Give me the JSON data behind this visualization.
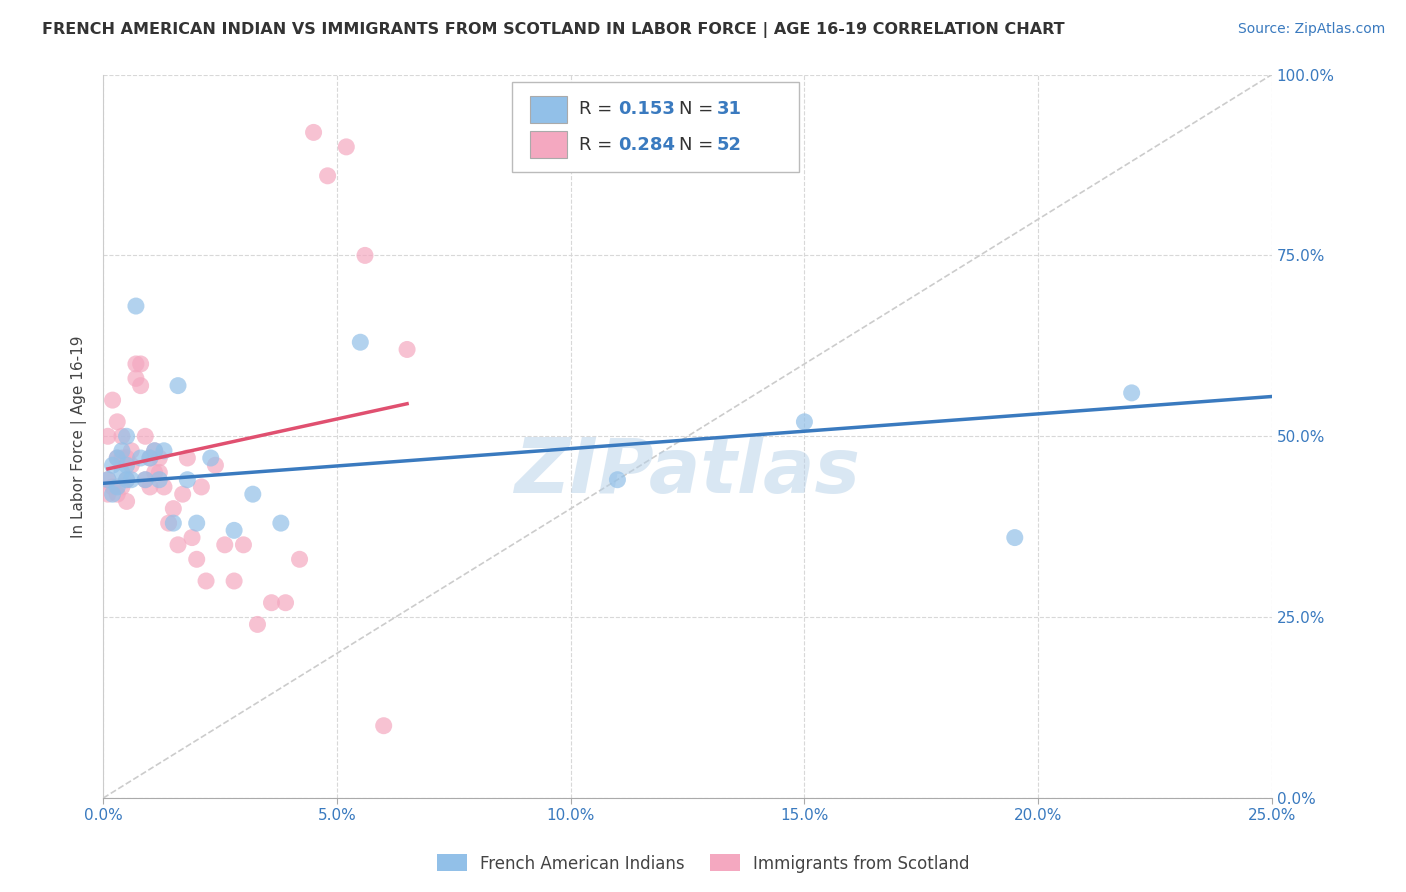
{
  "title": "FRENCH AMERICAN INDIAN VS IMMIGRANTS FROM SCOTLAND IN LABOR FORCE | AGE 16-19 CORRELATION CHART",
  "source": "Source: ZipAtlas.com",
  "ylabel": "In Labor Force | Age 16-19",
  "xlim": [
    0,
    0.25
  ],
  "ylim": [
    0,
    1.0
  ],
  "xticks": [
    0.0,
    0.05,
    0.1,
    0.15,
    0.2,
    0.25
  ],
  "yticks": [
    0.0,
    0.25,
    0.5,
    0.75,
    1.0
  ],
  "xtick_labels": [
    "0.0%",
    "5.0%",
    "10.0%",
    "15.0%",
    "20.0%",
    "25.0%"
  ],
  "ytick_labels": [
    "0.0%",
    "25.0%",
    "50.0%",
    "75.0%",
    "100.0%"
  ],
  "blue_R": 0.153,
  "blue_N": 31,
  "pink_R": 0.284,
  "pink_N": 52,
  "blue_color": "#92c0e8",
  "pink_color": "#f4a8c0",
  "blue_line_color": "#3a7abf",
  "pink_line_color": "#e05070",
  "ref_line_color": "#cccccc",
  "watermark": "ZIPatlas",
  "grid_color": "#d8d8d8",
  "blue_scatter_x": [
    0.001,
    0.002,
    0.002,
    0.003,
    0.003,
    0.004,
    0.004,
    0.005,
    0.005,
    0.005,
    0.006,
    0.007,
    0.008,
    0.009,
    0.01,
    0.011,
    0.012,
    0.013,
    0.015,
    0.016,
    0.018,
    0.02,
    0.023,
    0.028,
    0.032,
    0.038,
    0.055,
    0.11,
    0.15,
    0.195,
    0.22
  ],
  "blue_scatter_y": [
    0.44,
    0.46,
    0.42,
    0.47,
    0.43,
    0.45,
    0.48,
    0.44,
    0.5,
    0.46,
    0.44,
    0.68,
    0.47,
    0.44,
    0.47,
    0.48,
    0.44,
    0.48,
    0.38,
    0.57,
    0.44,
    0.38,
    0.47,
    0.37,
    0.42,
    0.38,
    0.63,
    0.44,
    0.52,
    0.36,
    0.56
  ],
  "pink_scatter_x": [
    0.001,
    0.001,
    0.001,
    0.002,
    0.002,
    0.003,
    0.003,
    0.003,
    0.004,
    0.004,
    0.004,
    0.005,
    0.005,
    0.005,
    0.006,
    0.006,
    0.007,
    0.007,
    0.008,
    0.008,
    0.009,
    0.009,
    0.01,
    0.01,
    0.011,
    0.011,
    0.012,
    0.012,
    0.013,
    0.014,
    0.015,
    0.016,
    0.017,
    0.018,
    0.019,
    0.02,
    0.021,
    0.022,
    0.024,
    0.026,
    0.028,
    0.03,
    0.033,
    0.036,
    0.039,
    0.042,
    0.045,
    0.048,
    0.052,
    0.056,
    0.06,
    0.065
  ],
  "pink_scatter_y": [
    0.44,
    0.5,
    0.42,
    0.43,
    0.55,
    0.42,
    0.47,
    0.52,
    0.43,
    0.47,
    0.5,
    0.44,
    0.47,
    0.41,
    0.46,
    0.48,
    0.58,
    0.6,
    0.57,
    0.6,
    0.5,
    0.44,
    0.47,
    0.43,
    0.45,
    0.48,
    0.45,
    0.47,
    0.43,
    0.38,
    0.4,
    0.35,
    0.42,
    0.47,
    0.36,
    0.33,
    0.43,
    0.3,
    0.46,
    0.35,
    0.3,
    0.35,
    0.24,
    0.27,
    0.27,
    0.33,
    0.92,
    0.86,
    0.9,
    0.75,
    0.1,
    0.62
  ],
  "blue_trend_x": [
    0.0,
    0.25
  ],
  "blue_trend_y": [
    0.435,
    0.555
  ],
  "pink_trend_x": [
    0.001,
    0.065
  ],
  "pink_trend_y": [
    0.455,
    0.545
  ]
}
